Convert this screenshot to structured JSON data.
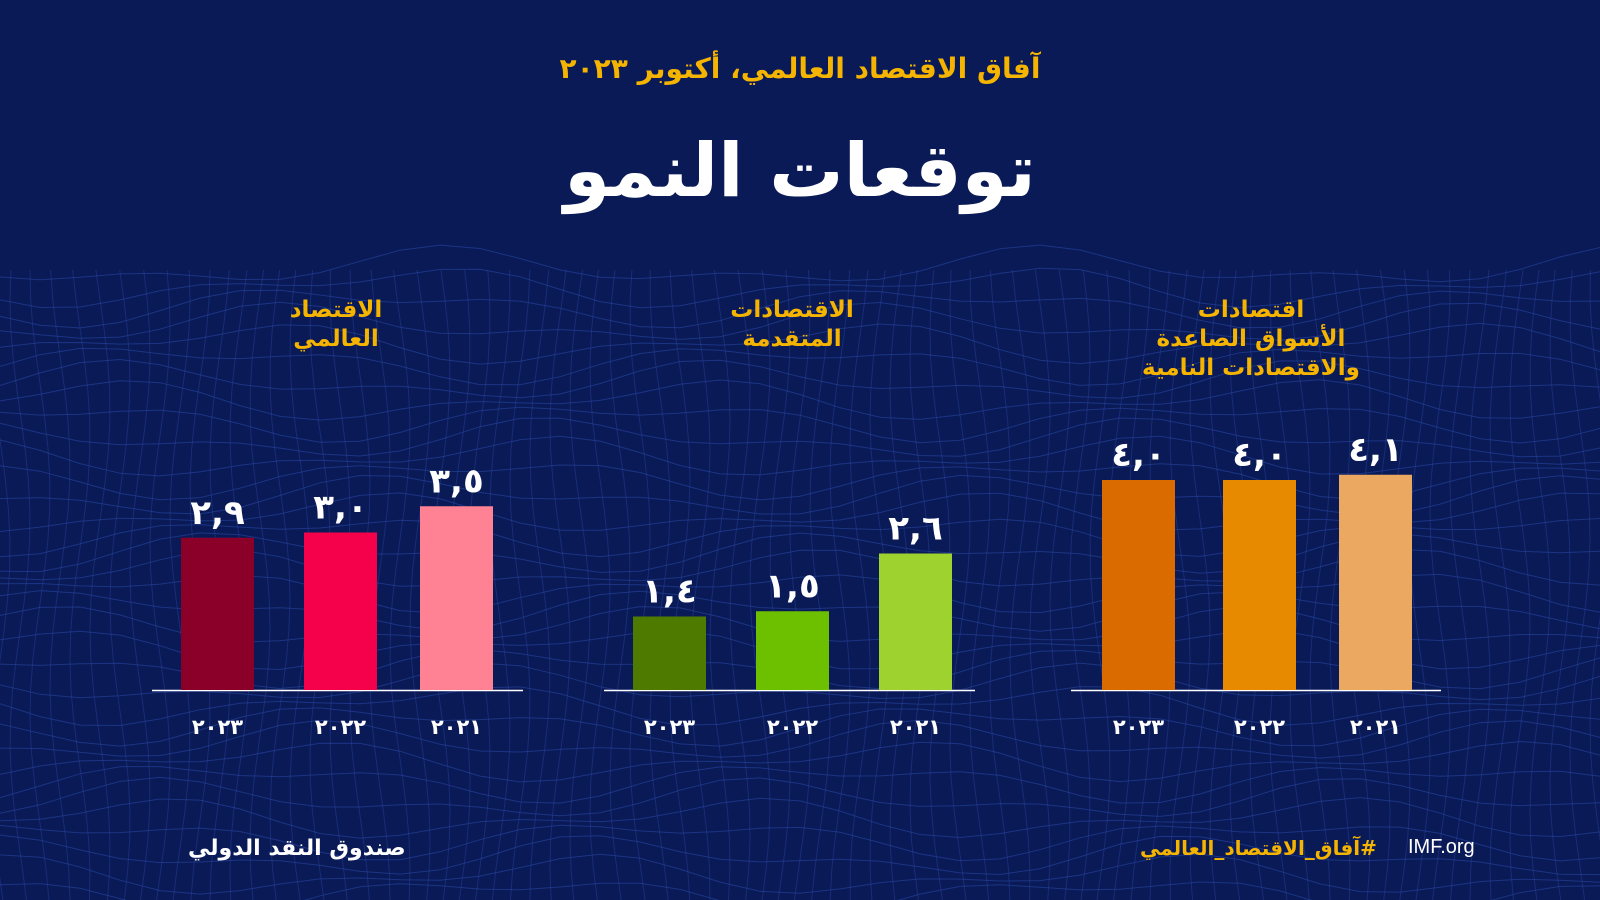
{
  "header": {
    "supertitle": "آفاق الاقتصاد العالمي، أكتوبر ٢٠٢٣",
    "title": "توقعات النمو"
  },
  "footer": {
    "org": "صندوق النقد الدولي",
    "hashtag": "#آفاق_الاقتصاد_العالمي",
    "site": "IMF.org"
  },
  "colors": {
    "background": "#0a1a57",
    "accent": "#f5b400",
    "grid": "#2a4ba8"
  },
  "chart_data": [
    {
      "type": "bar",
      "title_lines": [
        "الاقتصاد",
        "العالمي"
      ],
      "categories": [
        "٢٠٢٣",
        "٢٠٢٢",
        "٢٠٢١"
      ],
      "values": [
        2.9,
        3.0,
        3.5
      ],
      "value_labels": [
        "٢,٩",
        "٣,٠",
        "٣,٥"
      ],
      "colors": [
        "#8b0029",
        "#f5004a",
        "#ff8294"
      ],
      "ylim": [
        0,
        4.1
      ]
    },
    {
      "type": "bar",
      "title_lines": [
        "الاقتصادات",
        "المتقدمة"
      ],
      "categories": [
        "٢٠٢٣",
        "٢٠٢٢",
        "٢٠٢١"
      ],
      "values": [
        1.4,
        1.5,
        2.6
      ],
      "value_labels": [
        "١,٤",
        "١,٥",
        "٢,٦"
      ],
      "colors": [
        "#4f7a00",
        "#6cc000",
        "#9ed22e"
      ],
      "ylim": [
        0,
        4.1
      ]
    },
    {
      "type": "bar",
      "title_lines": [
        "اقتصادات",
        "الأسواق الصاعدة",
        "والاقتصادات النامية"
      ],
      "categories": [
        "٢٠٢٣",
        "٢٠٢٢",
        "٢٠٢١"
      ],
      "values": [
        4.0,
        4.0,
        4.1
      ],
      "value_labels": [
        "٤,٠",
        "٤,٠",
        "٤,١"
      ],
      "colors": [
        "#d96b00",
        "#e88a00",
        "#eba860"
      ],
      "ylim": [
        0,
        4.1
      ]
    }
  ]
}
